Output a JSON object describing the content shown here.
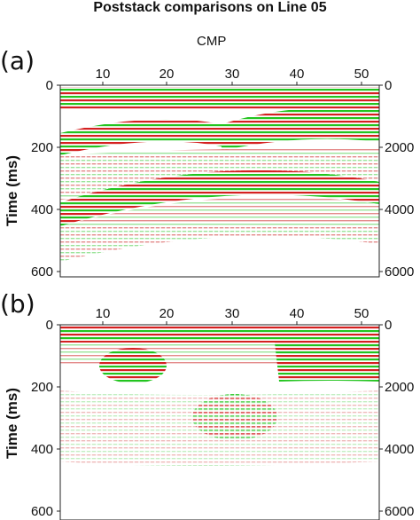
{
  "figure": {
    "title": "Poststack comparisons on Line 05",
    "x_axis_label": "CMP",
    "y_axis_label": "Time (ms)"
  },
  "panels": [
    {
      "label": "(a)",
      "x_ticks": [
        "10",
        "20",
        "30",
        "40",
        "50"
      ],
      "y_ticks_left": [
        "0",
        "200",
        "400",
        "600"
      ],
      "y_ticks_right": [
        "0",
        "2000",
        "4000",
        "6000"
      ]
    },
    {
      "label": "(b)",
      "x_ticks": [
        "10",
        "20",
        "30",
        "40",
        "50"
      ],
      "y_ticks_left": [
        "0",
        "200",
        "400",
        "600"
      ],
      "y_ticks_right": [
        "0",
        "2000",
        "4000",
        "6000"
      ]
    }
  ],
  "colors": {
    "positive": "#d42020",
    "negative": "#22c41e",
    "axis": "#222222"
  }
}
